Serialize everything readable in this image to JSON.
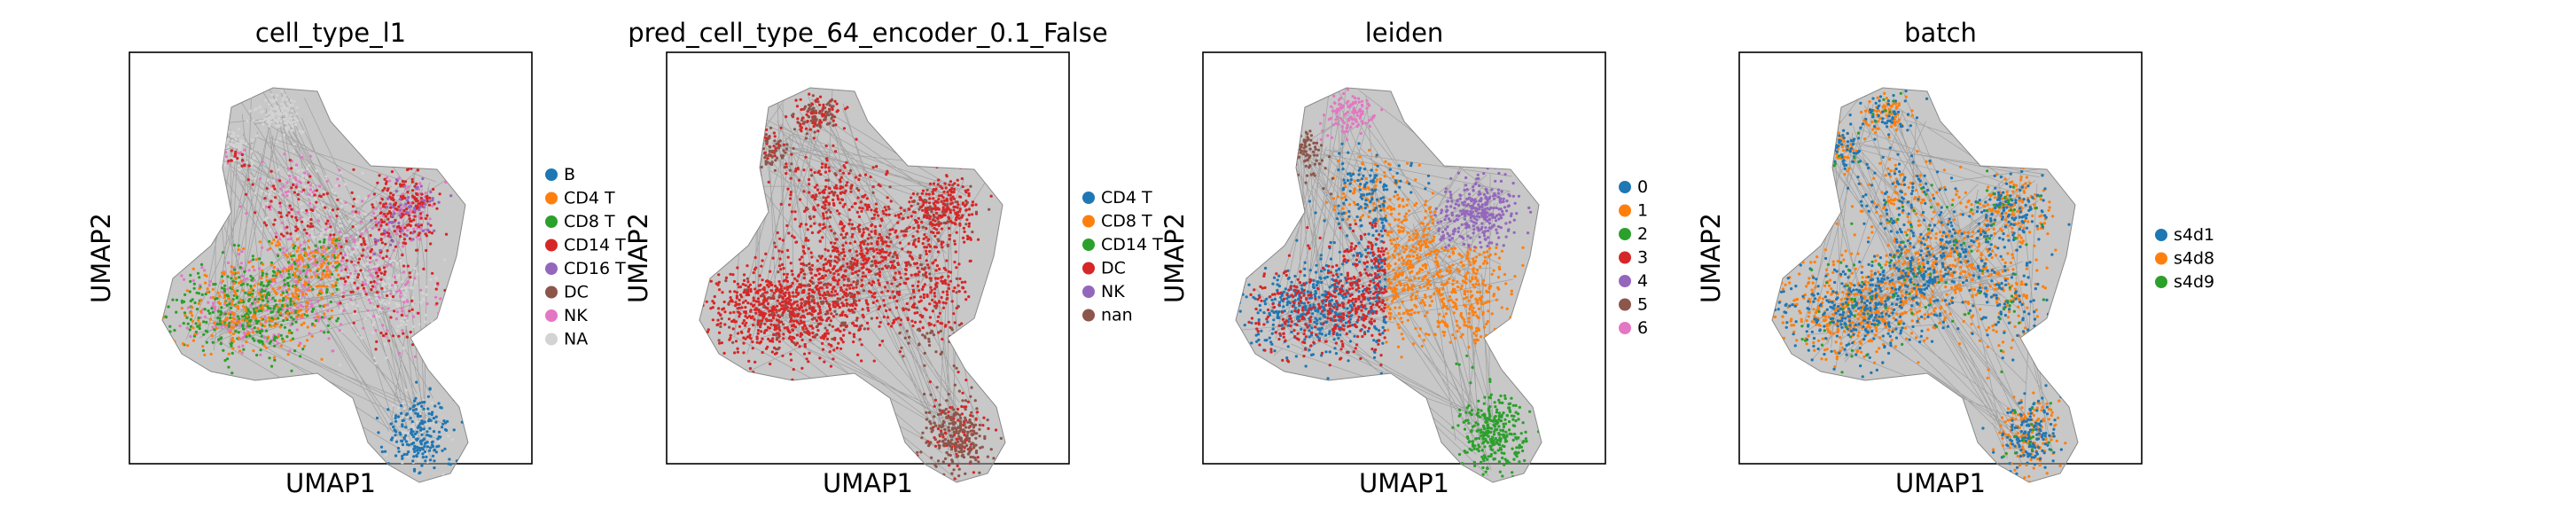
{
  "chart_data": [
    {
      "type": "scatter",
      "title": "cell_type_l1",
      "xlabel": "UMAP1",
      "ylabel": "UMAP2",
      "legend_position": "right",
      "grid": false,
      "series": [
        {
          "name": "B",
          "color": "#1f77b4"
        },
        {
          "name": "CD4 T",
          "color": "#ff7f0e"
        },
        {
          "name": "CD8 T",
          "color": "#2ca02c"
        },
        {
          "name": "CD14 T",
          "color": "#d62728"
        },
        {
          "name": "CD16 T",
          "color": "#9467bd"
        },
        {
          "name": "DC",
          "color": "#8c564b"
        },
        {
          "name": "NK",
          "color": "#e377c2"
        },
        {
          "name": "NA",
          "color": "#d3d3d3"
        }
      ]
    },
    {
      "type": "scatter",
      "title": "pred_cell_type_64_encoder_0.1_False",
      "xlabel": "UMAP1",
      "ylabel": "UMAP2",
      "legend_position": "right",
      "grid": false,
      "series": [
        {
          "name": "CD4 T",
          "color": "#1f77b4"
        },
        {
          "name": "CD8 T",
          "color": "#ff7f0e"
        },
        {
          "name": "CD14 T",
          "color": "#2ca02c"
        },
        {
          "name": "DC",
          "color": "#d62728"
        },
        {
          "name": "NK",
          "color": "#9467bd"
        },
        {
          "name": "nan",
          "color": "#8c564b"
        }
      ]
    },
    {
      "type": "scatter",
      "title": "leiden",
      "xlabel": "UMAP1",
      "ylabel": "UMAP2",
      "legend_position": "right",
      "grid": false,
      "series": [
        {
          "name": "0",
          "color": "#1f77b4"
        },
        {
          "name": "1",
          "color": "#ff7f0e"
        },
        {
          "name": "2",
          "color": "#2ca02c"
        },
        {
          "name": "3",
          "color": "#d62728"
        },
        {
          "name": "4",
          "color": "#9467bd"
        },
        {
          "name": "5",
          "color": "#8c564b"
        },
        {
          "name": "6",
          "color": "#e377c2"
        }
      ]
    },
    {
      "type": "scatter",
      "title": "batch",
      "xlabel": "UMAP1",
      "ylabel": "UMAP2",
      "legend_position": "right",
      "grid": false,
      "series": [
        {
          "name": "s4d1",
          "color": "#1f77b4"
        },
        {
          "name": "s4d8",
          "color": "#ff7f0e"
        },
        {
          "name": "s4d9",
          "color": "#2ca02c"
        }
      ]
    }
  ]
}
